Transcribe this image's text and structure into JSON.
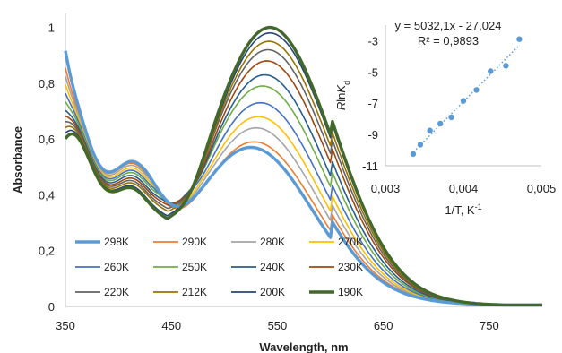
{
  "chart_data": [
    {
      "type": "line",
      "xlabel": "Wavelength, nm",
      "ylabel": "Absorbance",
      "xlim": [
        350,
        800
      ],
      "ylim": [
        0,
        1.05
      ],
      "xticks": [
        "350",
        "450",
        "550",
        "650",
        "750"
      ],
      "xtick_values": [
        350,
        450,
        550,
        650,
        750
      ],
      "yticks": [
        "0",
        "0,2",
        "0,4",
        "0,6",
        "0,8",
        "1"
      ],
      "ytick_values": [
        0,
        0.2,
        0.4,
        0.6,
        0.8,
        1.0
      ],
      "grid": false,
      "legend_position": "bottom-left",
      "series": [
        {
          "name": "298K",
          "color": "#5B9BD5",
          "bold": true,
          "start": 0.91,
          "shoulder": 0.53,
          "trough": 0.43,
          "trough_wl": 455,
          "peak": 0.57,
          "peak_wl": 525
        },
        {
          "name": "290K",
          "color": "#ED7D31",
          "bold": false,
          "start": 0.85,
          "shoulder": 0.53,
          "trough": 0.42,
          "trough_wl": 453,
          "peak": 0.59,
          "peak_wl": 528
        },
        {
          "name": "280K",
          "color": "#A5A5A5",
          "bold": false,
          "start": 0.82,
          "shoulder": 0.52,
          "trough": 0.41,
          "trough_wl": 452,
          "peak": 0.64,
          "peak_wl": 530
        },
        {
          "name": "270K",
          "color": "#FFC000",
          "bold": false,
          "start": 0.79,
          "shoulder": 0.51,
          "trough": 0.4,
          "trough_wl": 451,
          "peak": 0.68,
          "peak_wl": 532
        },
        {
          "name": "260K",
          "color": "#4472C4",
          "bold": false,
          "start": 0.76,
          "shoulder": 0.5,
          "trough": 0.39,
          "trough_wl": 450,
          "peak": 0.73,
          "peak_wl": 534
        },
        {
          "name": "250K",
          "color": "#70AD47",
          "bold": false,
          "start": 0.73,
          "shoulder": 0.49,
          "trough": 0.38,
          "trough_wl": 449,
          "peak": 0.79,
          "peak_wl": 536
        },
        {
          "name": "240K",
          "color": "#255E91",
          "bold": false,
          "start": 0.7,
          "shoulder": 0.48,
          "trough": 0.37,
          "trough_wl": 448,
          "peak": 0.83,
          "peak_wl": 538
        },
        {
          "name": "230K",
          "color": "#9E480E",
          "bold": false,
          "start": 0.68,
          "shoulder": 0.47,
          "trough": 0.36,
          "trough_wl": 448,
          "peak": 0.88,
          "peak_wl": 540
        },
        {
          "name": "220K",
          "color": "#636363",
          "bold": false,
          "start": 0.66,
          "shoulder": 0.46,
          "trough": 0.35,
          "trough_wl": 447,
          "peak": 0.92,
          "peak_wl": 541
        },
        {
          "name": "212K",
          "color": "#997300",
          "bold": false,
          "start": 0.64,
          "shoulder": 0.45,
          "trough": 0.34,
          "trough_wl": 447,
          "peak": 0.95,
          "peak_wl": 542
        },
        {
          "name": "200K",
          "color": "#264478",
          "bold": false,
          "start": 0.62,
          "shoulder": 0.44,
          "trough": 0.325,
          "trough_wl": 446,
          "peak": 0.98,
          "peak_wl": 543
        },
        {
          "name": "190K",
          "color": "#43682B",
          "bold": true,
          "start": 0.6,
          "shoulder": 0.43,
          "trough": 0.315,
          "trough_wl": 446,
          "peak": 1.0,
          "peak_wl": 543
        }
      ]
    },
    {
      "type": "scatter",
      "xlabel": "1/T, K-1",
      "ylabel": "RlnKd",
      "xlim": [
        0.003,
        0.005
      ],
      "ylim": [
        -11,
        -2
      ],
      "xticks": [
        "0,003",
        "0,004",
        "0,005"
      ],
      "xtick_values": [
        0.003,
        0.004,
        0.005
      ],
      "yticks": [
        "-3",
        "-5",
        "-7",
        "-9",
        "-11"
      ],
      "ytick_values": [
        -3,
        -5,
        -7,
        -9,
        -11
      ],
      "grid": false,
      "point_color": "#5B9BD5",
      "trendline": {
        "slope": 5032.1,
        "intercept": -27.024,
        "style": "dotted",
        "color": "#5B9BD5"
      },
      "equation": "y = 5032,1x - 27,024",
      "r_squared": "R² = 0,9893",
      "x": [
        0.003356,
        0.003448,
        0.003571,
        0.003704,
        0.003846,
        0.004,
        0.004167,
        0.004348,
        0.004545,
        0.004717,
        0.005
      ],
      "y": [
        -10.25,
        -9.65,
        -8.75,
        -8.3,
        -7.9,
        -6.85,
        -6.15,
        -4.95,
        -4.6,
        -2.9,
        null
      ]
    }
  ]
}
